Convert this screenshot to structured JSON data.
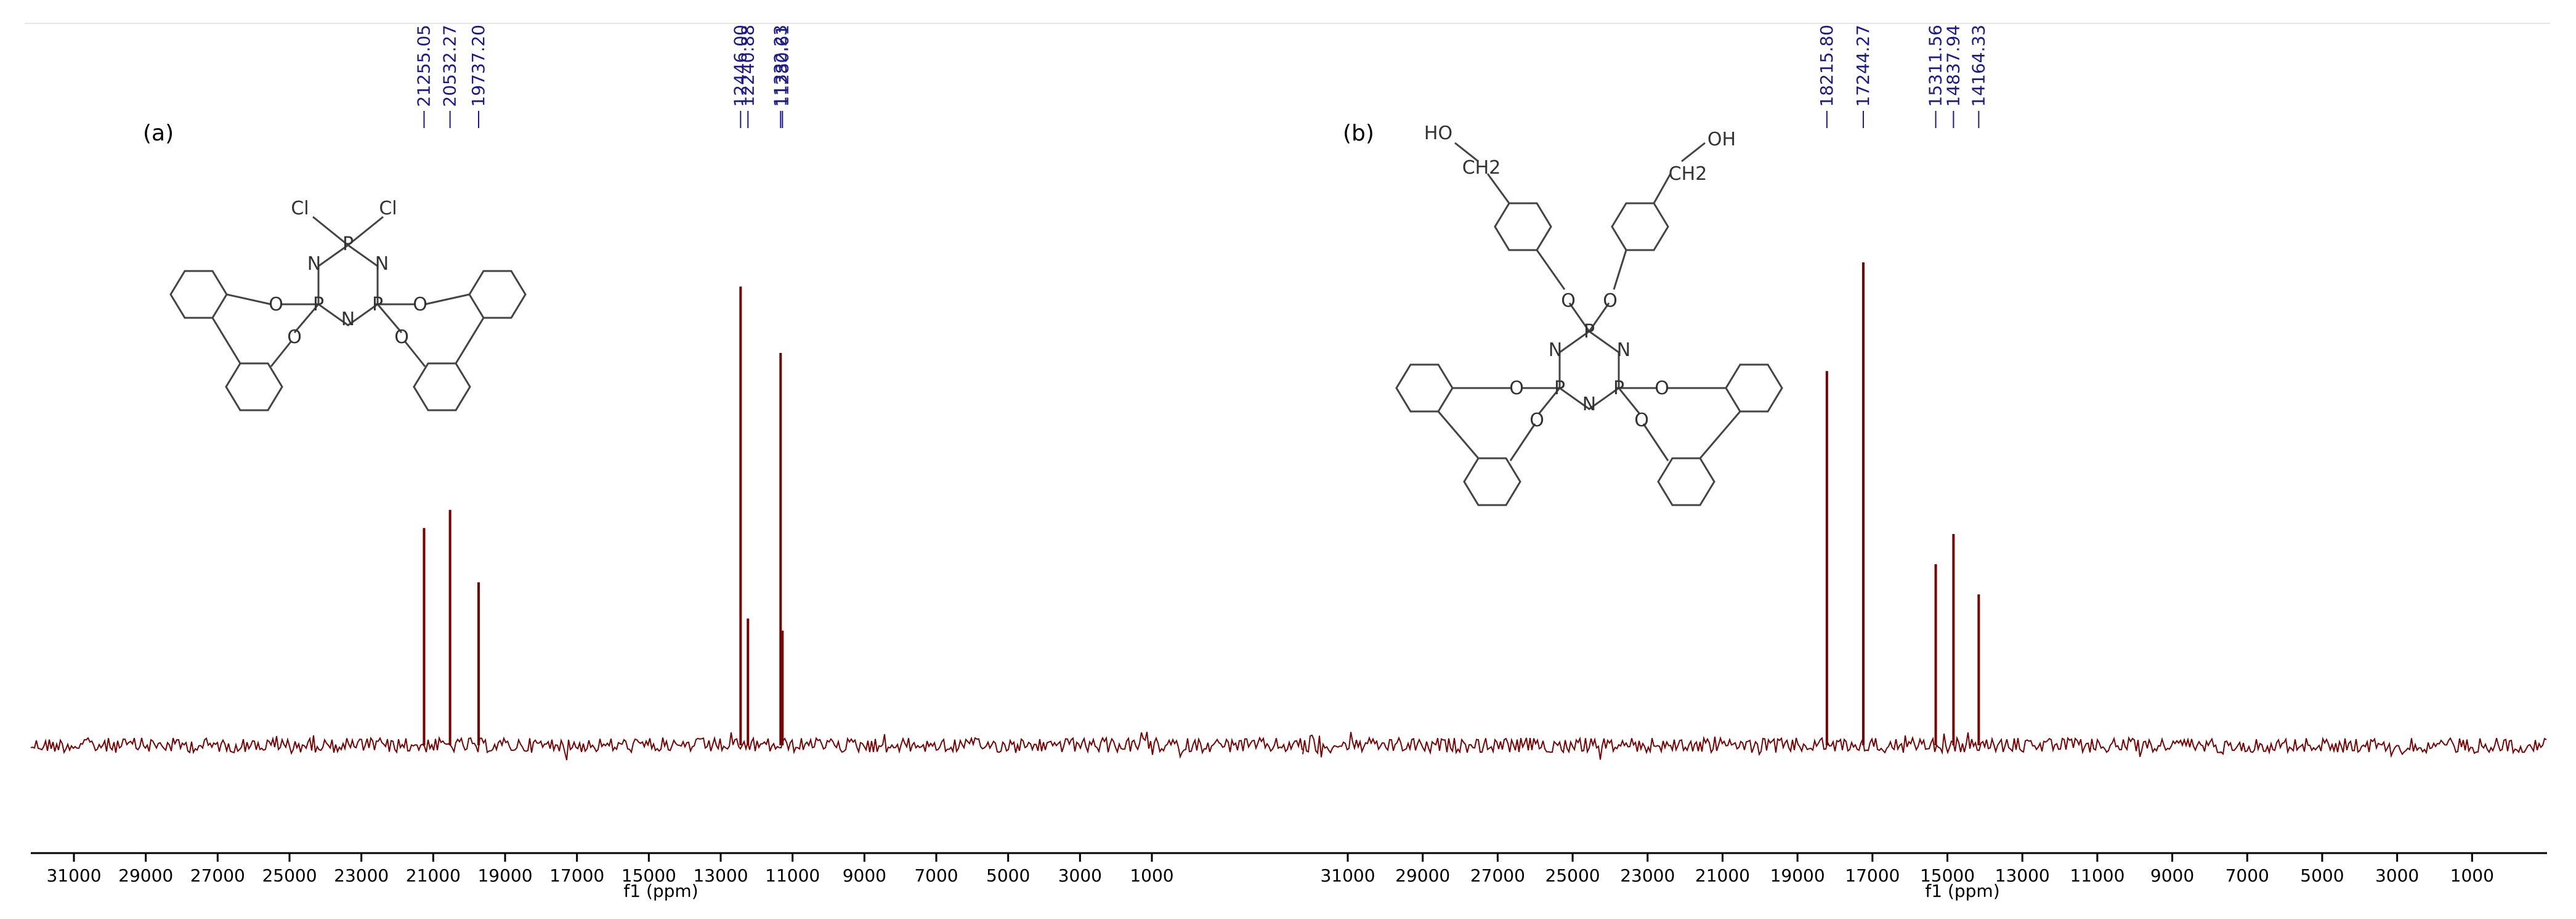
{
  "colors": {
    "spectrum": "#7a0000",
    "peak_label": "#1a1a8c",
    "axis": "#000000",
    "structure": "#444444"
  },
  "chart_data": [
    {
      "type": "line",
      "panel_label": "(a)",
      "xlabel": "f1 (ppm)",
      "xlim": [
        32200,
        -3200
      ],
      "x_reversed": true,
      "xticks": [
        31000,
        29000,
        27000,
        25000,
        23000,
        21000,
        19000,
        17000,
        15000,
        13000,
        11000,
        9000,
        7000,
        5000,
        3000,
        1000
      ],
      "peak_labels": [
        "21255.05",
        "20532.27",
        "19737.20",
        "12446.00",
        "12240.88",
        "11332.23",
        "11280.61"
      ],
      "series": [
        {
          "x": [
            21255.05,
            20532.27,
            19737.2,
            12446.0,
            12240.88,
            11332.23,
            11280.61
          ],
          "values": [
            0.36,
            0.39,
            0.27,
            0.76,
            0.21,
            0.65,
            0.19
          ]
        }
      ],
      "structure_atoms": [
        "Cl",
        "Cl",
        "P",
        "N",
        "N",
        "P",
        "P",
        "N",
        "O",
        "O",
        "O",
        "O"
      ]
    },
    {
      "type": "line",
      "panel_label": "(b)",
      "xlabel": "f1 (ppm)",
      "xlim": [
        32200,
        -1000
      ],
      "x_reversed": true,
      "xticks": [
        31000,
        29000,
        27000,
        25000,
        23000,
        21000,
        19000,
        17000,
        15000,
        13000,
        11000,
        9000,
        7000,
        5000,
        3000,
        1000
      ],
      "peak_labels": [
        "18215.80",
        "17244.27",
        "15311.56",
        "14837.94",
        "14164.33"
      ],
      "series": [
        {
          "x": [
            18215.8,
            17244.27,
            15311.56,
            14837.94,
            14164.33
          ],
          "values": [
            0.62,
            0.8,
            0.3,
            0.35,
            0.25
          ]
        }
      ],
      "structure_atoms": [
        "HO",
        "CH2",
        "OH",
        "CH2",
        "O",
        "O",
        "P",
        "N",
        "N",
        "P",
        "P",
        "N",
        "O",
        "O",
        "O",
        "O"
      ]
    }
  ]
}
